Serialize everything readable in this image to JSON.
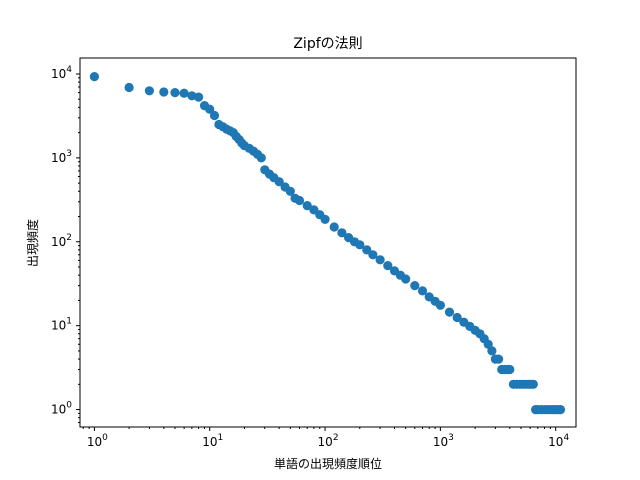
{
  "chart_data": {
    "type": "scatter",
    "title": "Zipfの法則",
    "xlabel": "単語の出現頻度順位",
    "ylabel": "出現頻度",
    "xscale": "log",
    "yscale": "log",
    "xlim": [
      0.75,
      15000
    ],
    "ylim": [
      0.62,
      15500
    ],
    "grid": false,
    "marker_color": "#1f77b4",
    "x_ticks": [
      {
        "base": "10",
        "exp": "0",
        "value": 1
      },
      {
        "base": "10",
        "exp": "1",
        "value": 10
      },
      {
        "base": "10",
        "exp": "2",
        "value": 100
      },
      {
        "base": "10",
        "exp": "3",
        "value": 1000
      },
      {
        "base": "10",
        "exp": "4",
        "value": 10000
      }
    ],
    "y_ticks": [
      {
        "base": "10",
        "exp": "0",
        "value": 1
      },
      {
        "base": "10",
        "exp": "1",
        "value": 10
      },
      {
        "base": "10",
        "exp": "2",
        "value": 100
      },
      {
        "base": "10",
        "exp": "3",
        "value": 1000
      },
      {
        "base": "10",
        "exp": "4",
        "value": 10000
      }
    ],
    "points": [
      [
        1,
        9300
      ],
      [
        2,
        6900
      ],
      [
        3,
        6300
      ],
      [
        4,
        6100
      ],
      [
        5,
        6000
      ],
      [
        6,
        5900
      ],
      [
        7,
        5500
      ],
      [
        8,
        5300
      ],
      [
        9,
        4200
      ],
      [
        10,
        3800
      ],
      [
        11,
        3200
      ],
      [
        12,
        2500
      ],
      [
        13,
        2350
      ],
      [
        14,
        2200
      ],
      [
        15,
        2100
      ],
      [
        16,
        2000
      ],
      [
        17,
        1800
      ],
      [
        18,
        1650
      ],
      [
        19,
        1500
      ],
      [
        20,
        1400
      ],
      [
        22,
        1300
      ],
      [
        24,
        1200
      ],
      [
        26,
        1100
      ],
      [
        28,
        1000
      ],
      [
        30,
        720
      ],
      [
        33,
        640
      ],
      [
        36,
        580
      ],
      [
        40,
        520
      ],
      [
        45,
        450
      ],
      [
        50,
        400
      ],
      [
        55,
        330
      ],
      [
        60,
        310
      ],
      [
        70,
        270
      ],
      [
        80,
        240
      ],
      [
        90,
        210
      ],
      [
        100,
        185
      ],
      [
        120,
        150
      ],
      [
        140,
        128
      ],
      [
        160,
        112
      ],
      [
        180,
        100
      ],
      [
        200,
        92
      ],
      [
        230,
        80
      ],
      [
        260,
        70
      ],
      [
        300,
        61
      ],
      [
        350,
        52
      ],
      [
        400,
        45
      ],
      [
        450,
        40
      ],
      [
        500,
        36
      ],
      [
        600,
        30
      ],
      [
        700,
        26
      ],
      [
        800,
        22
      ],
      [
        900,
        19.5
      ],
      [
        1000,
        17.5
      ],
      [
        1200,
        14.5
      ],
      [
        1400,
        12.5
      ],
      [
        1600,
        11
      ],
      [
        1800,
        9.8
      ],
      [
        2000,
        8.8
      ],
      [
        2200,
        8
      ],
      [
        2400,
        7
      ],
      [
        2600,
        6
      ],
      [
        2800,
        5
      ],
      [
        3000,
        4
      ],
      [
        3200,
        4
      ],
      [
        3400,
        3
      ],
      [
        3600,
        3
      ],
      [
        3800,
        3
      ],
      [
        4000,
        3
      ],
      [
        4300,
        2
      ],
      [
        4600,
        2
      ],
      [
        4900,
        2
      ],
      [
        5200,
        2
      ],
      [
        5500,
        2
      ],
      [
        5800,
        2
      ],
      [
        6100,
        2
      ],
      [
        6400,
        2
      ],
      [
        6700,
        1
      ],
      [
        7000,
        1
      ],
      [
        7500,
        1
      ],
      [
        8000,
        1
      ],
      [
        8500,
        1
      ],
      [
        9000,
        1
      ],
      [
        9500,
        1
      ],
      [
        10000,
        1
      ],
      [
        10500,
        1
      ],
      [
        11000,
        1
      ]
    ]
  }
}
